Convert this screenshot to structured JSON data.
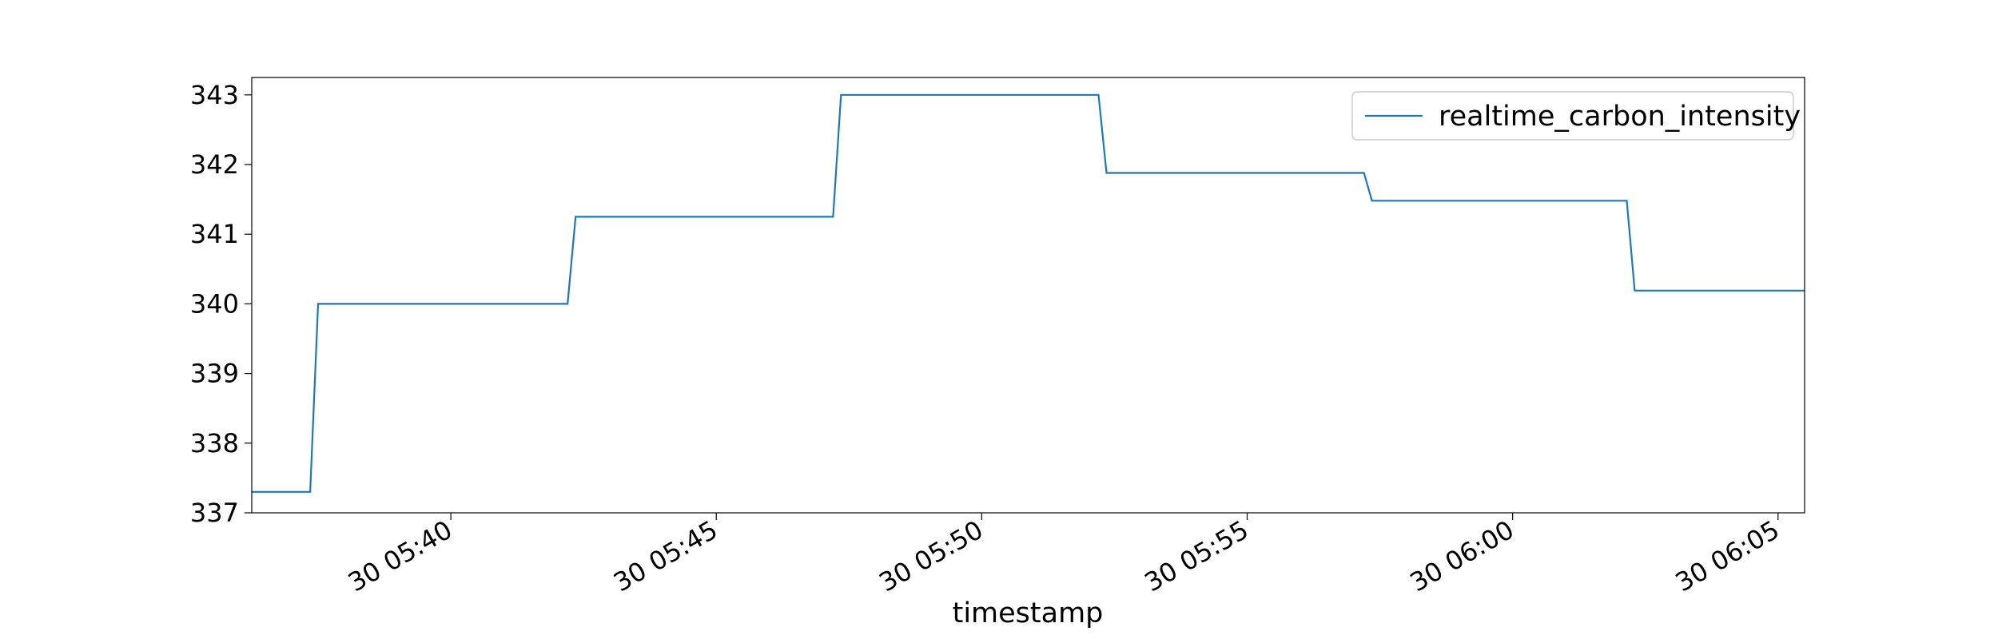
{
  "chart_data": {
    "type": "line",
    "title": "",
    "xlabel": "timestamp",
    "ylabel": "",
    "grid": false,
    "legend_position": "top-right",
    "colors": {
      "series": "#1f77b4",
      "axes": "#000000",
      "legend_border": "#cccccc"
    },
    "x_ticks": [
      {
        "t": "30 05:40",
        "label": "30 05:40"
      },
      {
        "t": "30 05:45",
        "label": "30 05:45"
      },
      {
        "t": "30 05:50",
        "label": "30 05:50"
      },
      {
        "t": "30 05:55",
        "label": "30 05:55"
      },
      {
        "t": "30 06:00",
        "label": "30 06:00"
      },
      {
        "t": "30 06:05",
        "label": "30 06:05"
      }
    ],
    "xlim": [
      "30 05:36:15",
      "30 06:05:30"
    ],
    "y_ticks": [
      337,
      338,
      339,
      340,
      341,
      342,
      343
    ],
    "ylim": [
      337,
      343.25
    ],
    "series": [
      {
        "name": "realtime_carbon_intensity",
        "x": [
          "30 05:36:15",
          "30 05:37:21",
          "30 05:37:30",
          "30 05:42:12",
          "30 05:42:21",
          "30 05:47:12",
          "30 05:47:21",
          "30 05:52:12",
          "30 05:52:21",
          "30 05:57:12",
          "30 05:57:21",
          "30 06:02:09",
          "30 06:02:18",
          "30 06:05:30"
        ],
        "y": [
          337.3,
          337.3,
          340.0,
          340.0,
          341.25,
          341.25,
          343.0,
          343.0,
          341.88,
          341.88,
          341.48,
          341.48,
          340.19,
          340.19
        ]
      }
    ]
  }
}
